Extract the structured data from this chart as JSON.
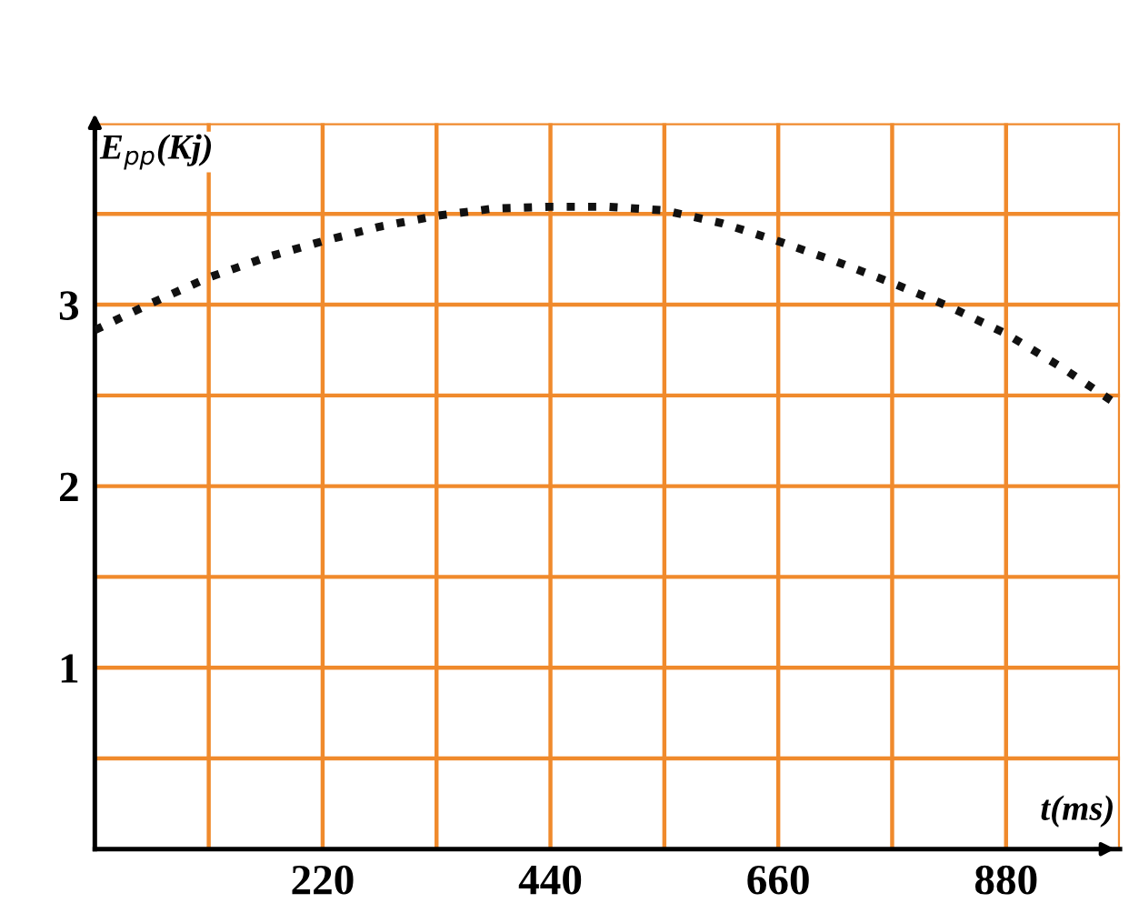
{
  "chart_data": {
    "type": "line",
    "xlabel": "t(ms)",
    "ylabel": "E$_{pp}$(Kj)",
    "x": [
      0,
      55,
      110,
      165,
      220,
      275,
      330,
      385,
      440,
      495,
      550,
      605,
      660,
      715,
      770,
      825,
      880,
      935,
      990
    ],
    "series": [
      {
        "color": "#111111",
        "values": [
          2.86,
          3.01,
          3.15,
          3.26,
          3.35,
          3.43,
          3.49,
          3.53,
          3.54,
          3.54,
          3.52,
          3.45,
          3.35,
          3.24,
          3.12,
          2.99,
          2.84,
          2.65,
          2.44
        ]
      }
    ],
    "xlim": [
      0,
      990
    ],
    "ylim": [
      0,
      4
    ],
    "xticks": [
      {
        "value": 110,
        "label": null
      },
      220,
      {
        "value": 330,
        "label": null
      },
      440,
      {
        "value": 550,
        "label": null
      },
      660,
      {
        "value": 770,
        "label": null
      },
      880,
      {
        "value": 990,
        "label": null
      }
    ],
    "yticks": [
      {
        "value": 0.5,
        "label": null
      },
      1,
      {
        "value": 1.5,
        "label": null
      },
      2,
      {
        "value": 2.5,
        "label": null
      },
      3,
      {
        "value": 3.5,
        "label": null
      },
      {
        "value": 4,
        "label": null
      }
    ],
    "grid": true,
    "line_style": "dotted",
    "marker": "none",
    "legend": false
  }
}
